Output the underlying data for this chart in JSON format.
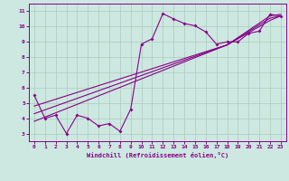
{
  "xlabel": "Windchill (Refroidissement éolien,°C)",
  "bg_color": "#cce8e0",
  "line_color": "#880088",
  "grid_color": "#aaccbb",
  "axis_color": "#880088",
  "xlim": [
    -0.5,
    23.5
  ],
  "ylim": [
    2.5,
    11.5
  ],
  "xticks": [
    0,
    1,
    2,
    3,
    4,
    5,
    6,
    7,
    8,
    9,
    10,
    11,
    12,
    13,
    14,
    15,
    16,
    17,
    18,
    19,
    20,
    21,
    22,
    23
  ],
  "yticks": [
    3,
    4,
    5,
    6,
    7,
    8,
    9,
    10,
    11
  ],
  "series1_x": [
    0,
    1,
    2,
    3,
    4,
    5,
    6,
    7,
    8,
    9,
    10,
    11,
    12,
    13,
    14,
    15,
    16,
    17,
    18,
    19,
    20,
    21,
    22,
    23
  ],
  "series1_y": [
    5.5,
    4.0,
    4.2,
    3.0,
    4.2,
    4.0,
    3.5,
    3.65,
    3.15,
    4.6,
    8.85,
    9.2,
    10.85,
    10.5,
    10.2,
    10.05,
    9.65,
    8.85,
    9.0,
    9.0,
    9.55,
    9.7,
    10.8,
    10.7
  ],
  "series2_x": [
    0,
    18,
    22,
    23
  ],
  "series2_y": [
    4.8,
    8.8,
    10.7,
    10.8
  ],
  "series3_x": [
    0,
    18,
    22,
    23
  ],
  "series3_y": [
    4.3,
    8.8,
    10.55,
    10.7
  ],
  "series4_x": [
    0,
    18,
    22,
    23
  ],
  "series4_y": [
    3.8,
    8.8,
    10.4,
    10.7
  ]
}
